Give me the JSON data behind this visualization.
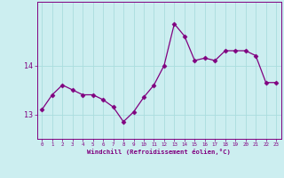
{
  "x": [
    0,
    1,
    2,
    3,
    4,
    5,
    6,
    7,
    8,
    9,
    10,
    11,
    12,
    13,
    14,
    15,
    16,
    17,
    18,
    19,
    20,
    21,
    22,
    23
  ],
  "y": [
    13.1,
    13.4,
    13.6,
    13.5,
    13.4,
    13.4,
    13.3,
    13.15,
    12.85,
    13.05,
    13.35,
    13.6,
    14.0,
    14.85,
    14.6,
    14.1,
    14.15,
    14.1,
    14.3,
    14.3,
    14.3,
    14.2,
    13.65,
    13.65
  ],
  "line_color": "#800080",
  "marker": "D",
  "marker_size": 2.5,
  "bg_color": "#cceef0",
  "grid_color": "#aadddd",
  "tick_label_color": "#800080",
  "xlabel": "Windchill (Refroidissement éolien,°C)",
  "xlabel_color": "#800080",
  "yticks": [
    13,
    14
  ],
  "xtick_labels": [
    "0",
    "1",
    "2",
    "3",
    "4",
    "5",
    "6",
    "7",
    "8",
    "9",
    "10",
    "11",
    "12",
    "13",
    "14",
    "15",
    "16",
    "17",
    "18",
    "19",
    "20",
    "21",
    "22",
    "23"
  ],
  "ylim": [
    12.5,
    15.3
  ],
  "xlim": [
    -0.5,
    23.5
  ]
}
